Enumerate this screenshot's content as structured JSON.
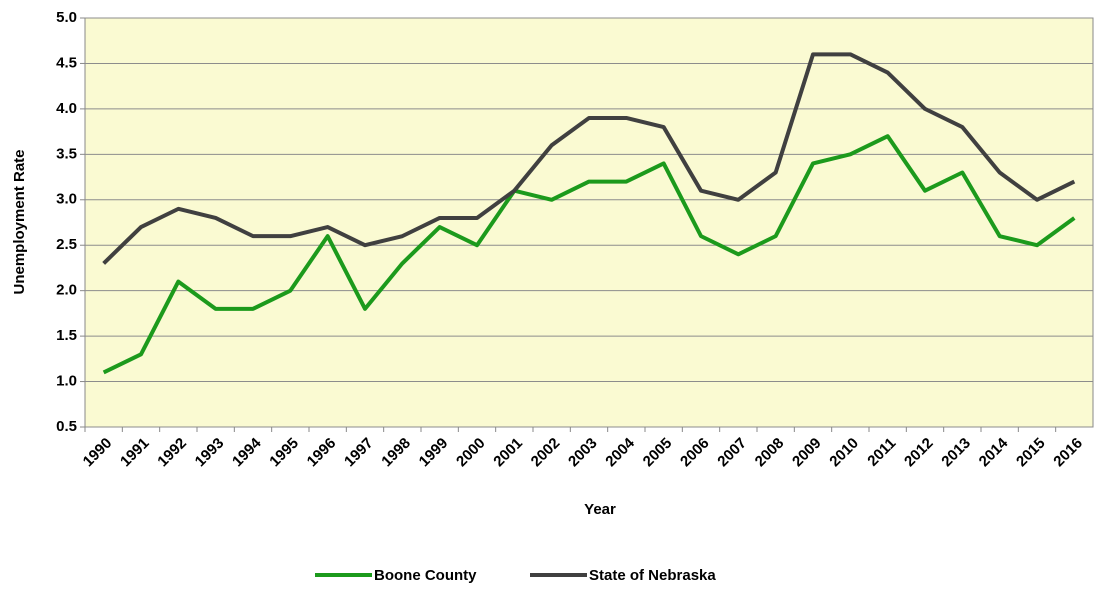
{
  "chart_data": {
    "type": "line",
    "x_label": "Year",
    "y_label": "Unemployment Rate",
    "categories": [
      "1990",
      "1991",
      "1992",
      "1993",
      "1994",
      "1995",
      "1996",
      "1997",
      "1998",
      "1999",
      "2000",
      "2001",
      "2002",
      "2003",
      "2004",
      "2005",
      "2006",
      "2007",
      "2008",
      "2009",
      "2010",
      "2011",
      "2012",
      "2013",
      "2014",
      "2015",
      "2016"
    ],
    "series": [
      {
        "name": "Boone County",
        "color": "#1c9a1c",
        "values": [
          1.1,
          1.3,
          2.1,
          1.8,
          1.8,
          2.0,
          2.6,
          1.8,
          2.3,
          2.7,
          2.5,
          3.1,
          3.0,
          3.2,
          3.2,
          3.4,
          2.6,
          2.4,
          2.6,
          3.4,
          3.5,
          3.7,
          3.1,
          3.3,
          2.6,
          2.5,
          2.8
        ]
      },
      {
        "name": "State of Nebraska",
        "color": "#404040",
        "values": [
          2.3,
          2.7,
          2.9,
          2.8,
          2.6,
          2.6,
          2.7,
          2.5,
          2.6,
          2.8,
          2.8,
          3.1,
          3.6,
          3.9,
          3.9,
          3.8,
          3.1,
          3.0,
          3.3,
          4.6,
          4.6,
          4.4,
          4.0,
          3.8,
          3.3,
          3.0,
          3.2
        ]
      }
    ],
    "ylim": [
      0.5,
      5
    ],
    "yticks": [
      0.5,
      {
        "value": 1,
        "label": "1.0"
      },
      1.5,
      {
        "value": 2,
        "label": "2.0"
      },
      2.5,
      {
        "value": 3,
        "label": "3.0"
      },
      3.5,
      {
        "value": 4,
        "label": "4.0"
      },
      4.5,
      {
        "value": 5,
        "label": "5.0"
      }
    ],
    "grid": true,
    "legend": "bottom"
  }
}
